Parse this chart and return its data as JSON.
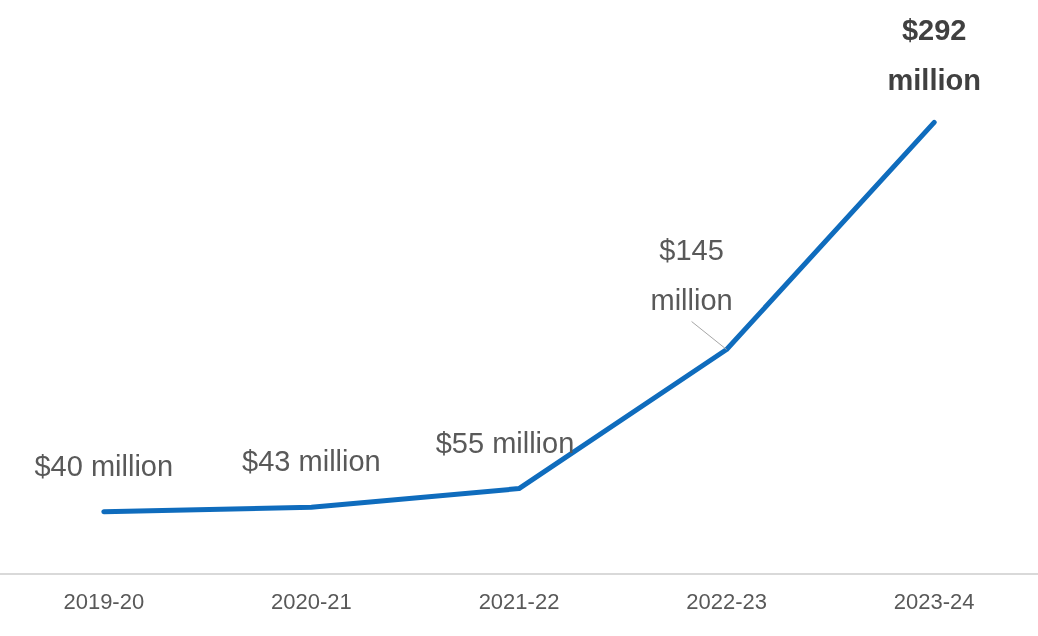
{
  "chart_data": {
    "type": "line",
    "categories": [
      "2019-20",
      "2020-21",
      "2021-22",
      "2022-23",
      "2023-24"
    ],
    "series": [
      {
        "color": "#0f6cbd",
        "values": [
          40,
          43,
          55,
          145,
          292
        ],
        "value_labels": [
          "$40 million",
          "$43 million",
          "$55 million",
          "$145 million",
          "$292 million"
        ]
      }
    ],
    "tick_labels": "x",
    "grid": false,
    "legend": false,
    "marker": "none",
    "line_style": "solid"
  }
}
